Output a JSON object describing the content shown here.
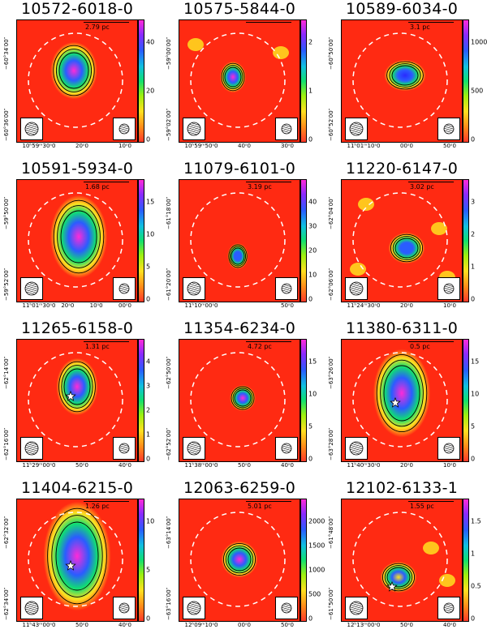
{
  "panels": [
    {
      "title": "10572-6018-0",
      "scale": "2.79 pc",
      "cbar": [
        "0",
        "20",
        "40"
      ],
      "yticks": [
        "−60°34′00″",
        "−60°36′00″"
      ],
      "xticks": [
        "10ʰ59ᵐ30ˢ0",
        "20ˢ0",
        "10ˢ0"
      ]
    },
    {
      "title": "10575-5844-0",
      "scale": "",
      "cbar": [
        "0",
        "1",
        "2"
      ],
      "yticks": [
        "−59°00′00″",
        "−59°02′00″"
      ],
      "xticks": [
        "10ʰ59ᵐ50ˢ0",
        "40ˢ0",
        "30ˢ0"
      ]
    },
    {
      "title": "10589-6034-0",
      "scale": "3.1 pc",
      "cbar": [
        "0",
        "500",
        "1000"
      ],
      "yticks": [
        "−60°50′00″",
        "−60°52′00″"
      ],
      "xticks": [
        "11ʰ01ᵐ10ˢ0",
        "00ˢ0",
        "50ˢ0"
      ]
    },
    {
      "title": "10591-5934-0",
      "scale": "1.68 pc",
      "cbar": [
        "0",
        "5",
        "10",
        "15"
      ],
      "yticks": [
        "−59°50′00″",
        "−59°52′00″"
      ],
      "xticks": [
        "11ʰ01ᵐ30ˢ0",
        "20ˢ0",
        "10ˢ0",
        "00ˢ0"
      ]
    },
    {
      "title": "11079-6101-0",
      "scale": "3.19 pc",
      "cbar": [
        "0",
        "10",
        "20",
        "30",
        "40"
      ],
      "yticks": [
        "−61°18′00″",
        "−61°20′00″"
      ],
      "xticks": [
        "11ʰ10ᵐ00ˢ0",
        "50ˢ0"
      ]
    },
    {
      "title": "11220-6147-0",
      "scale": "3.02 pc",
      "cbar": [
        "0",
        "1",
        "2",
        "3"
      ],
      "yticks": [
        "−62°04′00″",
        "−62°06′00″"
      ],
      "xticks": [
        "11ʰ24ᵐ30ˢ0",
        "20ˢ0",
        "10ˢ0"
      ]
    },
    {
      "title": "11265-6158-0",
      "scale": "1.31 pc",
      "cbar": [
        "0",
        "1",
        "2",
        "3",
        "4"
      ],
      "yticks": [
        "−62°14′00″",
        "−62°16′00″"
      ],
      "xticks": [
        "11ʰ29ᵐ00ˢ0",
        "50ˢ0",
        "40ˢ0"
      ]
    },
    {
      "title": "11354-6234-0",
      "scale": "4.72 pc",
      "cbar": [
        "0",
        "5",
        "10",
        "15"
      ],
      "yticks": [
        "−62°50′00″",
        "−62°52′00″"
      ],
      "xticks": [
        "11ʰ38ᵐ00ˢ0",
        "50ˢ0",
        "40ˢ0"
      ]
    },
    {
      "title": "11380-6311-0",
      "scale": "0.5 pc",
      "cbar": [
        "0",
        "5",
        "10",
        "15"
      ],
      "yticks": [
        "−63°26′00″",
        "−63°28′00″"
      ],
      "xticks": [
        "11ʰ40ᵐ30ˢ0",
        "20ˢ0",
        "10ˢ0"
      ]
    },
    {
      "title": "11404-6215-0",
      "scale": "1.26 pc",
      "cbar": [
        "0",
        "5",
        "10"
      ],
      "yticks": [
        "−62°32′00″",
        "−62°34′00″"
      ],
      "xticks": [
        "11ʰ43ᵐ00ˢ0",
        "50ˢ0",
        "40ˢ0"
      ]
    },
    {
      "title": "12063-6259-0",
      "scale": "5.01 pc",
      "cbar": [
        "0",
        "500",
        "1000",
        "1500",
        "2000"
      ],
      "yticks": [
        "−63°14′00″",
        "−63°16′00″"
      ],
      "xticks": [
        "12ʰ09ᵐ10ˢ0",
        "00ˢ0",
        "50ˢ0"
      ]
    },
    {
      "title": "12102-6133-1",
      "scale": "1.55 pc",
      "cbar": [
        "0",
        "0.5",
        "1",
        "1.5"
      ],
      "yticks": [
        "−61°48′00″",
        "−61°50′00″"
      ],
      "xticks": [
        "12ʰ13ᵐ00ˢ0",
        "50ˢ0",
        "40ˢ0"
      ]
    }
  ],
  "colors": {
    "background_map": "#ff2a12",
    "ring": "#ffffff",
    "contour": "#000000"
  },
  "icons": {
    "beam": "hatched-ellipse-icon",
    "source": "star-icon"
  }
}
